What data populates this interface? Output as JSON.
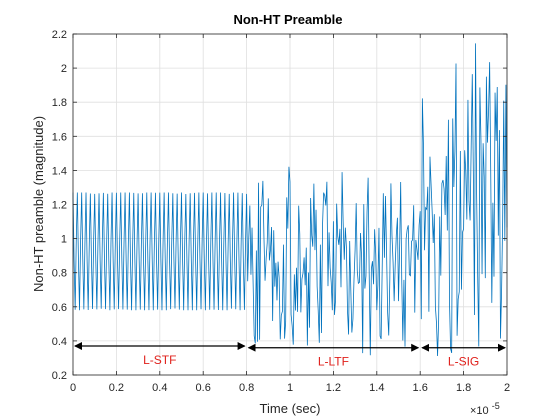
{
  "chart_data": {
    "type": "line",
    "title": "Non-HT Preamble",
    "xlabel": "Time (sec)",
    "ylabel": "Non-HT preamble (magnitude)",
    "x_multiplier_label": "×10",
    "x_multiplier_exponent": "-5",
    "xlim": [
      0,
      2
    ],
    "ylim": [
      0.2,
      2.2
    ],
    "xticks": [
      0,
      0.2,
      0.4,
      0.6,
      0.8,
      1,
      1.2,
      1.4,
      1.6,
      1.8,
      2
    ],
    "xtick_labels": [
      "0",
      "0.2",
      "0.4",
      "0.6",
      "0.8",
      "1",
      "1.2",
      "1.4",
      "1.6",
      "1.8",
      "2"
    ],
    "yticks": [
      0.2,
      0.4,
      0.6,
      0.8,
      1,
      1.2,
      1.4,
      1.6,
      1.8,
      2,
      2.2
    ],
    "ytick_labels": [
      "0.2",
      "0.4",
      "0.6",
      "0.8",
      "1",
      "1.2",
      "1.4",
      "1.6",
      "1.8",
      "2",
      "2.2"
    ],
    "grid": true,
    "line_color": "#0072bd",
    "annotation_color": "#e0201b",
    "segments": [
      {
        "label": "L-STF",
        "x_start": 0,
        "x_end": 0.8,
        "arrow_y": 0.37
      },
      {
        "label": "L-LTF",
        "x_start": 0.8,
        "x_end": 1.6,
        "arrow_y": 0.36
      },
      {
        "label": "L-SIG",
        "x_start": 1.6,
        "x_end": 2.0,
        "arrow_y": 0.36
      }
    ],
    "series": [
      {
        "sample_count": 400,
        "sample_spacing": 0.005,
        "regions": [
          {
            "x_start": 0,
            "x_end": 0.8,
            "min": 0.58,
            "max": 1.27,
            "pattern": "periodic"
          },
          {
            "x_start": 0.8,
            "x_end": 1.6,
            "min": 0.31,
            "max": 1.43,
            "pattern": "irregular"
          },
          {
            "x_start": 1.6,
            "x_end": 2.0,
            "min": 0.27,
            "max": 2.15,
            "pattern": "irregular"
          }
        ]
      }
    ]
  }
}
